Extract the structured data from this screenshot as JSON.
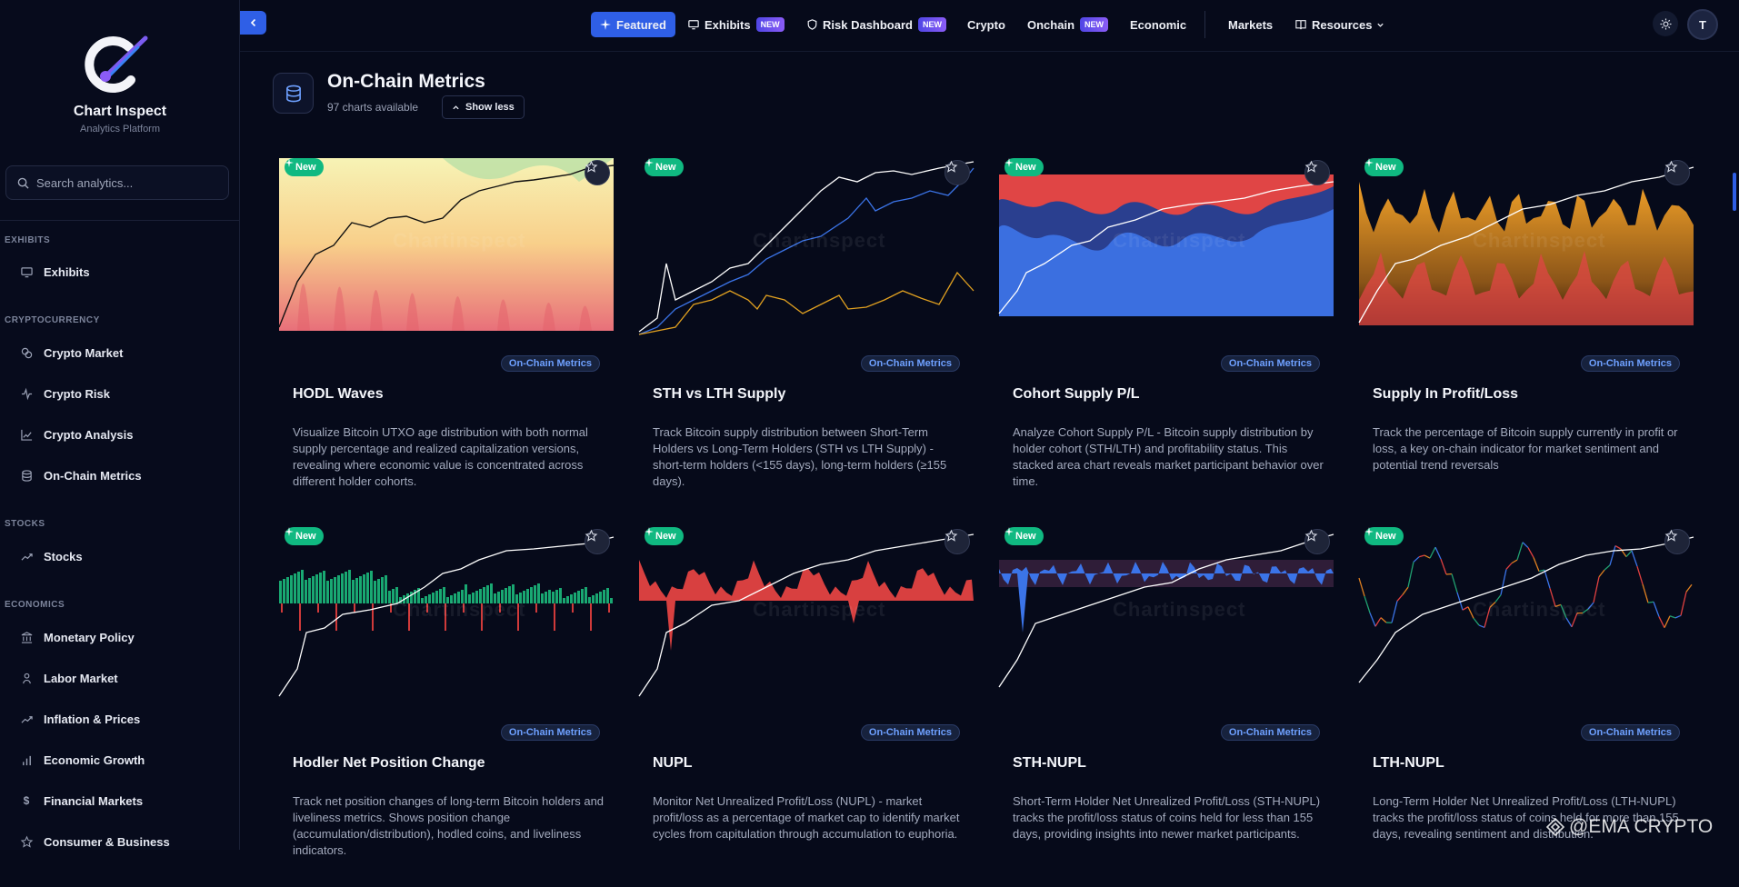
{
  "brand": {
    "name": "Chart Inspect",
    "tagline": "Analytics Platform"
  },
  "search": {
    "placeholder": "Search analytics..."
  },
  "sidebar": {
    "sections": [
      {
        "label": "EXHIBITS",
        "items": [
          {
            "label": "Exhibits",
            "icon": "monitor-icon"
          }
        ]
      },
      {
        "label": "CRYPTOCURRENCY",
        "items": [
          {
            "label": "Crypto Market",
            "icon": "coins-icon"
          },
          {
            "label": "Crypto Risk",
            "icon": "activity-icon"
          },
          {
            "label": "Crypto Analysis",
            "icon": "chart-line-icon"
          },
          {
            "label": "On-Chain Metrics",
            "icon": "database-icon"
          }
        ]
      },
      {
        "label": "STOCKS",
        "items": [
          {
            "label": "Stocks",
            "icon": "trending-up-icon"
          }
        ]
      },
      {
        "label": "ECONOMICS",
        "items": [
          {
            "label": "Monetary Policy",
            "icon": "bank-icon"
          },
          {
            "label": "Labor Market",
            "icon": "users-icon"
          },
          {
            "label": "Inflation & Prices",
            "icon": "trending-up-icon"
          },
          {
            "label": "Economic Growth",
            "icon": "bar-chart-icon"
          },
          {
            "label": "Financial Markets",
            "icon": "dollar-icon"
          },
          {
            "label": "Consumer & Business",
            "icon": "store-icon"
          }
        ]
      }
    ]
  },
  "topnav": {
    "items": [
      {
        "label": "Featured",
        "icon": "sparkles-icon",
        "active": true
      },
      {
        "label": "Exhibits",
        "icon": "monitor-icon",
        "badge": "NEW"
      },
      {
        "label": "Risk Dashboard",
        "icon": "shield-icon",
        "badge": "NEW"
      },
      {
        "label": "Crypto"
      },
      {
        "label": "Onchain",
        "badge": "NEW"
      },
      {
        "label": "Economic"
      },
      {
        "label": "Markets"
      },
      {
        "label": "Resources",
        "icon": "book-icon",
        "dropdown": true
      }
    ],
    "user_initial": "T"
  },
  "header": {
    "title": "On-Chain Metrics",
    "count": "97 charts available",
    "toggle_label": "Show less"
  },
  "cards": [
    {
      "title": "HODL Waves",
      "category": "On-Chain Metrics",
      "badge": "New",
      "description": "Visualize Bitcoin UTXO age distribution with both normal supply percentage and realized capitalization versions, revealing where economic value is concentrated across different holder cohorts."
    },
    {
      "title": "STH vs LTH Supply",
      "category": "On-Chain Metrics",
      "badge": "New",
      "description": "Track Bitcoin supply distribution between Short-Term Holders vs Long-Term Holders (STH vs LTH Supply) - short-term holders (<155 days), long-term holders (≥155 days)."
    },
    {
      "title": "Cohort Supply P/L",
      "category": "On-Chain Metrics",
      "badge": "New",
      "description": "Analyze Cohort Supply P/L - Bitcoin supply distribution by holder cohort (STH/LTH) and profitability status. This stacked area chart reveals market participant behavior over time."
    },
    {
      "title": "Supply In Profit/Loss",
      "category": "On-Chain Metrics",
      "badge": "New",
      "description": "Track the percentage of Bitcoin supply currently in profit or loss, a key on-chain indicator for market sentiment and potential trend reversals"
    },
    {
      "title": "Hodler Net Position Change",
      "category": "On-Chain Metrics",
      "badge": "New",
      "description": "Track net position changes of long-term Bitcoin holders and liveliness metrics. Shows position change (accumulation/distribution), hodled coins, and liveliness indicators."
    },
    {
      "title": "NUPL",
      "category": "On-Chain Metrics",
      "badge": "New",
      "description": "Monitor Net Unrealized Profit/Loss (NUPL) - market profit/loss as a percentage of market cap to identify market cycles from capitulation through accumulation to euphoria."
    },
    {
      "title": "STH-NUPL",
      "category": "On-Chain Metrics",
      "badge": "New",
      "description": "Short-Term Holder Net Unrealized Profit/Loss (STH-NUPL) tracks the profit/loss status of coins held for less than 155 days, providing insights into newer market participants."
    },
    {
      "title": "LTH-NUPL",
      "category": "On-Chain Metrics",
      "badge": "New",
      "description": "Long-Term Holder Net Unrealized Profit/Loss (LTH-NUPL) tracks the profit/loss status of coins held for more than 155 days, revealing sentiment and distribution."
    }
  ],
  "watermark": "Chartinspect",
  "overlay_mark": "@EMA CRYPTO",
  "colors": {
    "accent": "#2f5fe6",
    "new_badge": "#10b981",
    "category_text": "#6ea0ff",
    "background": "#060a1a"
  }
}
